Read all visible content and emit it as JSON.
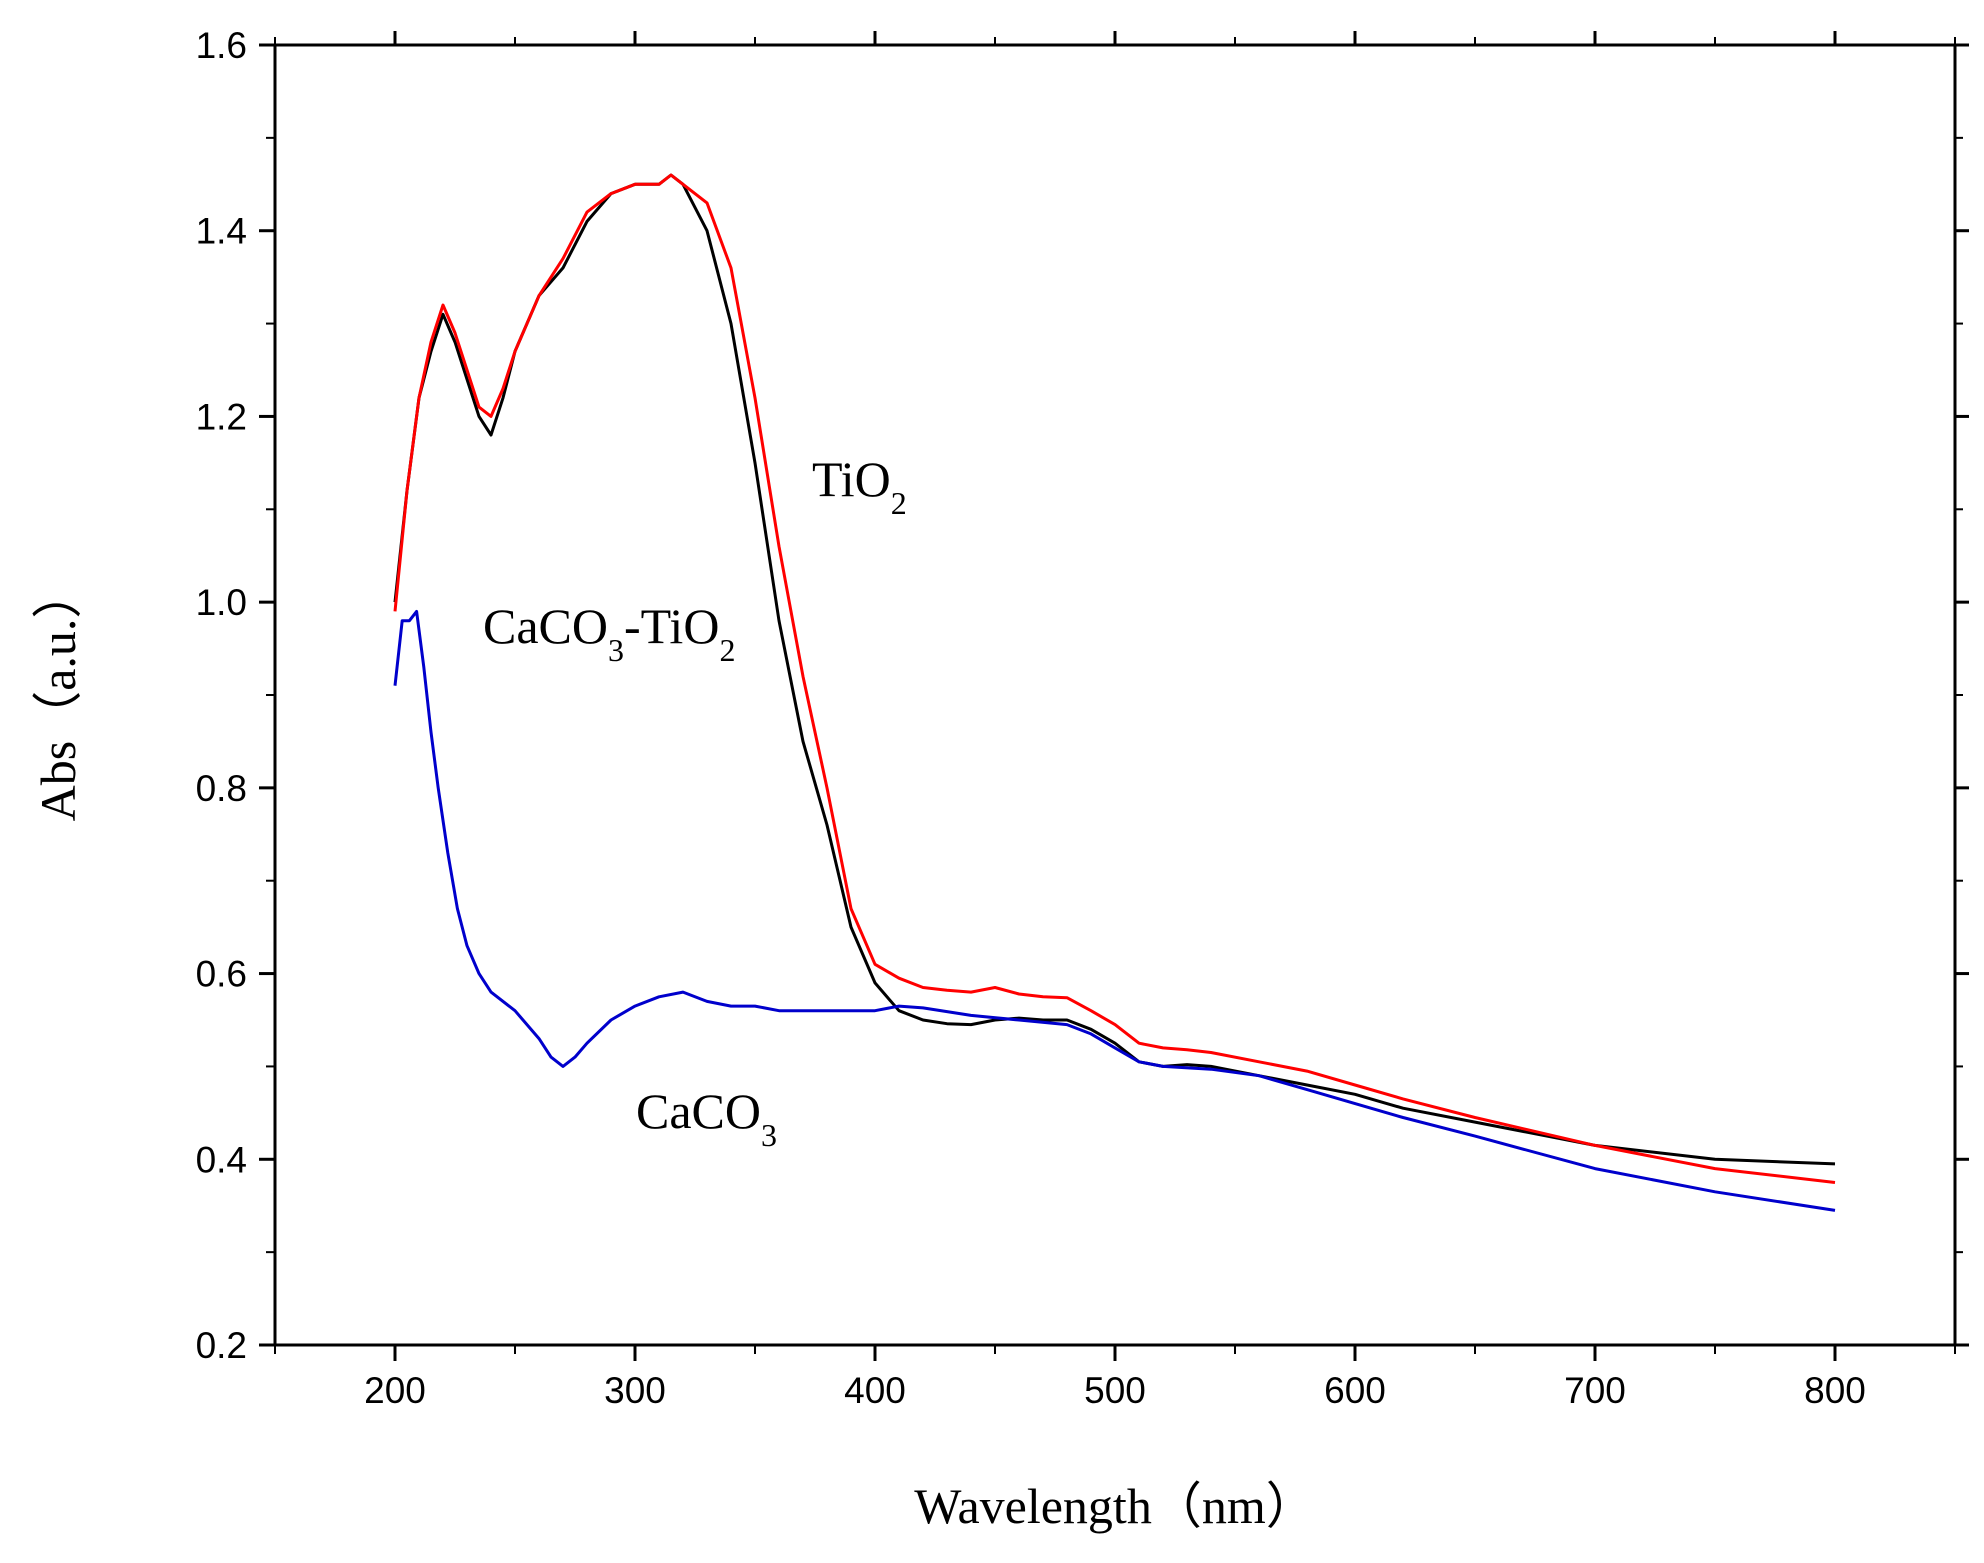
{
  "chart_data": {
    "type": "line",
    "title": "",
    "xlabel": "Wavelength（nm）",
    "ylabel": "Abs（a.u.）",
    "xlim": [
      150,
      850
    ],
    "ylim": [
      0.2,
      1.6
    ],
    "xticks": [
      "200",
      "300",
      "400",
      "500",
      "600",
      "700",
      "800"
    ],
    "yticks": [
      "0.2",
      "0.4",
      "0.6",
      "0.8",
      "1.0",
      "1.2",
      "1.4",
      "1.6"
    ],
    "grid": false,
    "series": [
      {
        "name": "CaCO3-TiO2",
        "color": "#000000",
        "x": [
          200,
          205,
          210,
          215,
          220,
          225,
          230,
          235,
          240,
          245,
          250,
          260,
          270,
          280,
          290,
          300,
          310,
          315,
          320,
          330,
          340,
          350,
          360,
          370,
          380,
          390,
          400,
          410,
          420,
          430,
          440,
          450,
          460,
          470,
          480,
          490,
          500,
          510,
          520,
          530,
          540,
          560,
          580,
          600,
          620,
          650,
          700,
          750,
          800
        ],
        "values": [
          1.0,
          1.12,
          1.22,
          1.27,
          1.31,
          1.28,
          1.24,
          1.2,
          1.18,
          1.22,
          1.27,
          1.33,
          1.36,
          1.41,
          1.44,
          1.45,
          1.45,
          1.46,
          1.45,
          1.4,
          1.3,
          1.15,
          0.98,
          0.85,
          0.76,
          0.65,
          0.59,
          0.56,
          0.55,
          0.546,
          0.545,
          0.55,
          0.552,
          0.55,
          0.55,
          0.54,
          0.525,
          0.505,
          0.5,
          0.502,
          0.5,
          0.49,
          0.48,
          0.47,
          0.455,
          0.44,
          0.415,
          0.4,
          0.395
        ]
      },
      {
        "name": "TiO2",
        "color": "#ff0000",
        "x": [
          200,
          205,
          210,
          215,
          220,
          225,
          230,
          235,
          240,
          245,
          250,
          260,
          270,
          280,
          290,
          300,
          310,
          315,
          320,
          330,
          340,
          350,
          360,
          370,
          380,
          390,
          400,
          410,
          420,
          430,
          440,
          450,
          460,
          470,
          480,
          490,
          500,
          510,
          520,
          530,
          540,
          560,
          580,
          600,
          620,
          650,
          700,
          750,
          800
        ],
        "values": [
          0.99,
          1.12,
          1.22,
          1.28,
          1.32,
          1.29,
          1.25,
          1.21,
          1.2,
          1.23,
          1.27,
          1.33,
          1.37,
          1.42,
          1.44,
          1.45,
          1.45,
          1.46,
          1.45,
          1.43,
          1.36,
          1.22,
          1.06,
          0.92,
          0.8,
          0.67,
          0.61,
          0.595,
          0.585,
          0.582,
          0.58,
          0.585,
          0.578,
          0.575,
          0.574,
          0.56,
          0.545,
          0.525,
          0.52,
          0.518,
          0.515,
          0.505,
          0.495,
          0.48,
          0.465,
          0.445,
          0.415,
          0.39,
          0.375
        ]
      },
      {
        "name": "CaCO3",
        "color": "#0000cc",
        "x": [
          200,
          203,
          206,
          209,
          212,
          215,
          218,
          222,
          226,
          230,
          235,
          240,
          250,
          260,
          265,
          270,
          275,
          280,
          290,
          300,
          310,
          320,
          330,
          340,
          350,
          360,
          380,
          400,
          410,
          420,
          440,
          460,
          480,
          490,
          500,
          510,
          520,
          540,
          560,
          580,
          600,
          620,
          650,
          700,
          750,
          800
        ],
        "values": [
          0.91,
          0.98,
          0.98,
          0.99,
          0.93,
          0.86,
          0.8,
          0.73,
          0.67,
          0.63,
          0.6,
          0.58,
          0.56,
          0.53,
          0.51,
          0.5,
          0.51,
          0.525,
          0.55,
          0.565,
          0.575,
          0.58,
          0.57,
          0.565,
          0.565,
          0.56,
          0.56,
          0.56,
          0.565,
          0.563,
          0.555,
          0.55,
          0.545,
          0.535,
          0.52,
          0.505,
          0.5,
          0.497,
          0.49,
          0.475,
          0.46,
          0.445,
          0.425,
          0.39,
          0.365,
          0.345
        ]
      }
    ],
    "annotations": [
      {
        "name": "TiO2",
        "text": "TiO",
        "sub": "2"
      },
      {
        "name": "CaCO3-TiO2",
        "text": "CaCO",
        "sub": "3",
        "text2": "-TiO",
        "sub2": "2"
      },
      {
        "name": "CaCO3",
        "text": "CaCO",
        "sub": "3"
      }
    ]
  }
}
